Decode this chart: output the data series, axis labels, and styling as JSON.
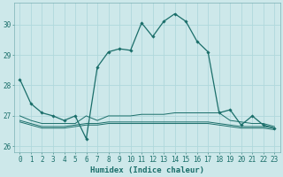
{
  "title": "",
  "xlabel": "Humidex (Indice chaleur)",
  "bg_color": "#cde8ea",
  "grid_color": "#b0d8dc",
  "line_color": "#1a6e6a",
  "xlim": [
    -0.5,
    23.5
  ],
  "ylim": [
    25.8,
    30.7
  ],
  "yticks": [
    26,
    27,
    28,
    29,
    30
  ],
  "xticks": [
    0,
    1,
    2,
    3,
    4,
    5,
    6,
    7,
    8,
    9,
    10,
    11,
    12,
    13,
    14,
    15,
    16,
    17,
    18,
    19,
    20,
    21,
    22,
    23
  ],
  "series0": [
    28.2,
    27.4,
    27.1,
    27.0,
    26.85,
    27.0,
    26.25,
    28.6,
    29.1,
    29.2,
    29.15,
    30.05,
    29.6,
    30.1,
    30.35,
    30.1,
    29.45,
    29.1,
    27.1,
    27.2,
    26.7,
    27.0,
    26.7,
    26.6
  ],
  "series1": [
    27.0,
    26.85,
    26.75,
    26.75,
    26.75,
    26.75,
    27.0,
    26.85,
    27.0,
    27.0,
    27.0,
    27.05,
    27.05,
    27.05,
    27.1,
    27.1,
    27.1,
    27.1,
    27.1,
    26.85,
    26.8,
    26.75,
    26.75,
    26.65
  ],
  "series2": [
    26.85,
    26.75,
    26.65,
    26.65,
    26.65,
    26.7,
    26.75,
    26.75,
    26.8,
    26.8,
    26.8,
    26.8,
    26.8,
    26.8,
    26.8,
    26.8,
    26.8,
    26.8,
    26.75,
    26.7,
    26.65,
    26.65,
    26.65,
    26.6
  ],
  "series3": [
    26.8,
    26.7,
    26.6,
    26.6,
    26.6,
    26.65,
    26.7,
    26.7,
    26.75,
    26.75,
    26.75,
    26.75,
    26.75,
    26.75,
    26.75,
    26.75,
    26.75,
    26.75,
    26.7,
    26.65,
    26.6,
    26.6,
    26.6,
    26.55
  ],
  "xlabel_fontsize": 6.5,
  "tick_fontsize": 5.5
}
